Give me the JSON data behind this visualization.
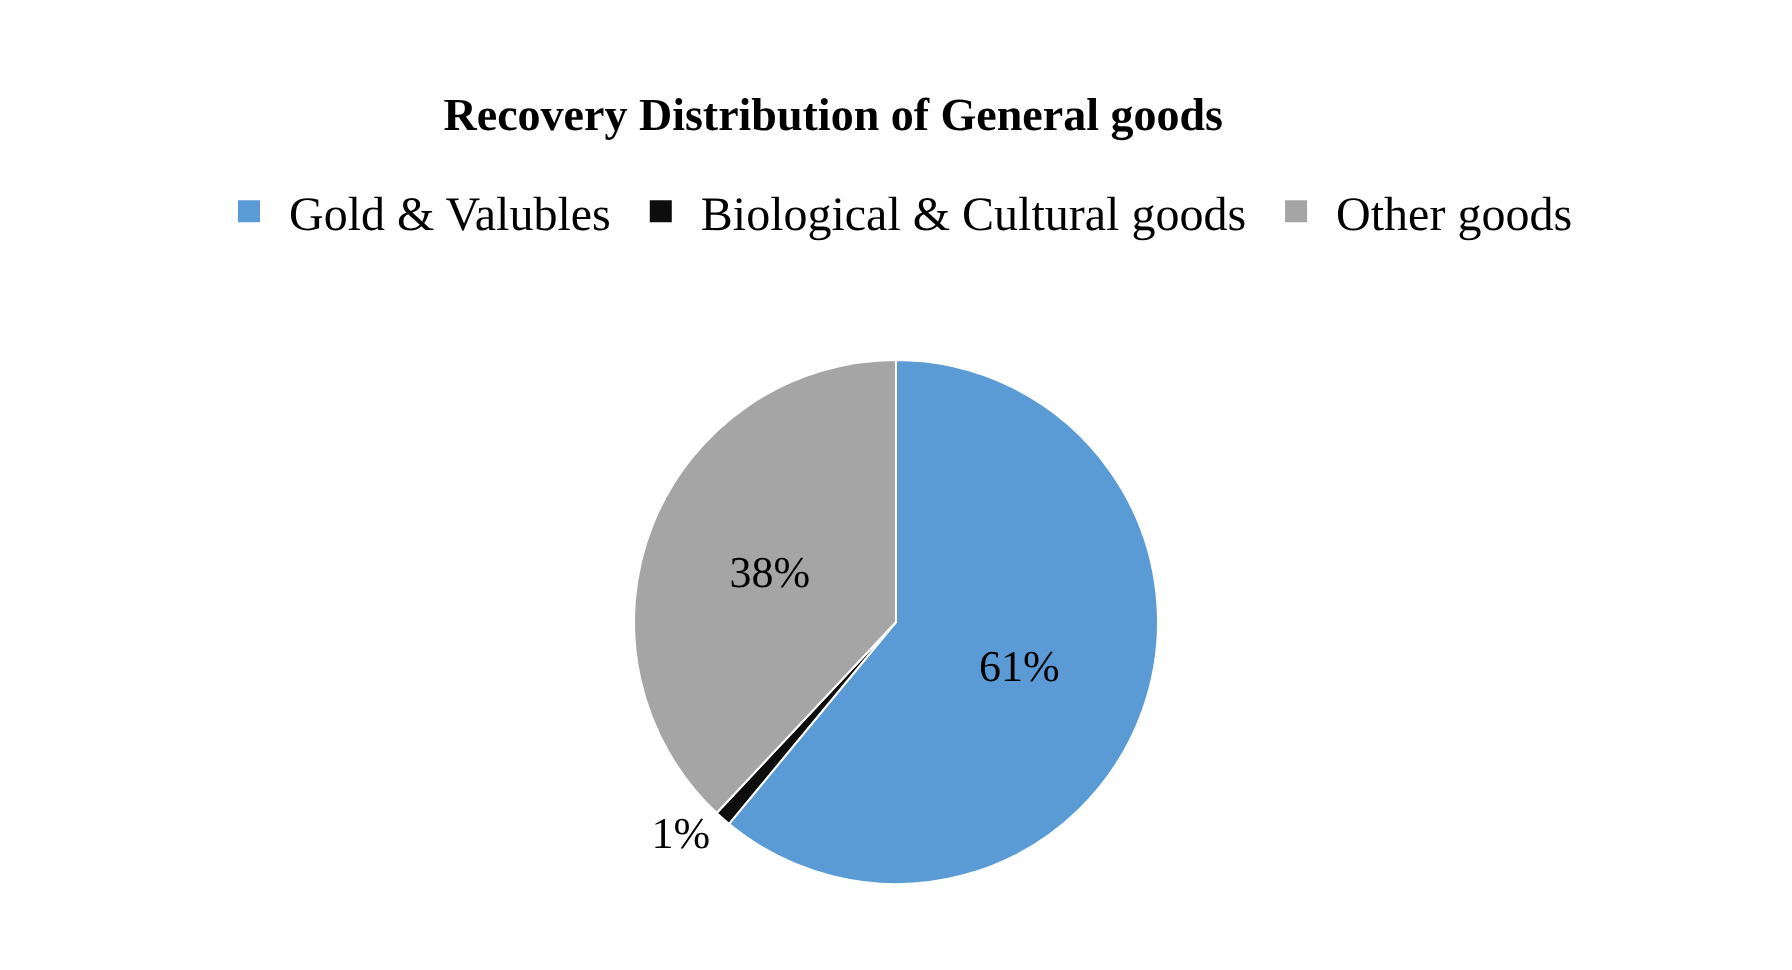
{
  "chart_data": {
    "type": "pie",
    "title": "Recovery Distribution of General goods",
    "categories": [
      "Gold & Valubles",
      "Biological & Cultural goods",
      "Other goods"
    ],
    "values": [
      61,
      1,
      38
    ],
    "colors": [
      "#5b9bd5",
      "#0d0d0d",
      "#a5a5a5"
    ],
    "value_labels": [
      "61%",
      "1%",
      "38%"
    ],
    "legend": "top"
  }
}
